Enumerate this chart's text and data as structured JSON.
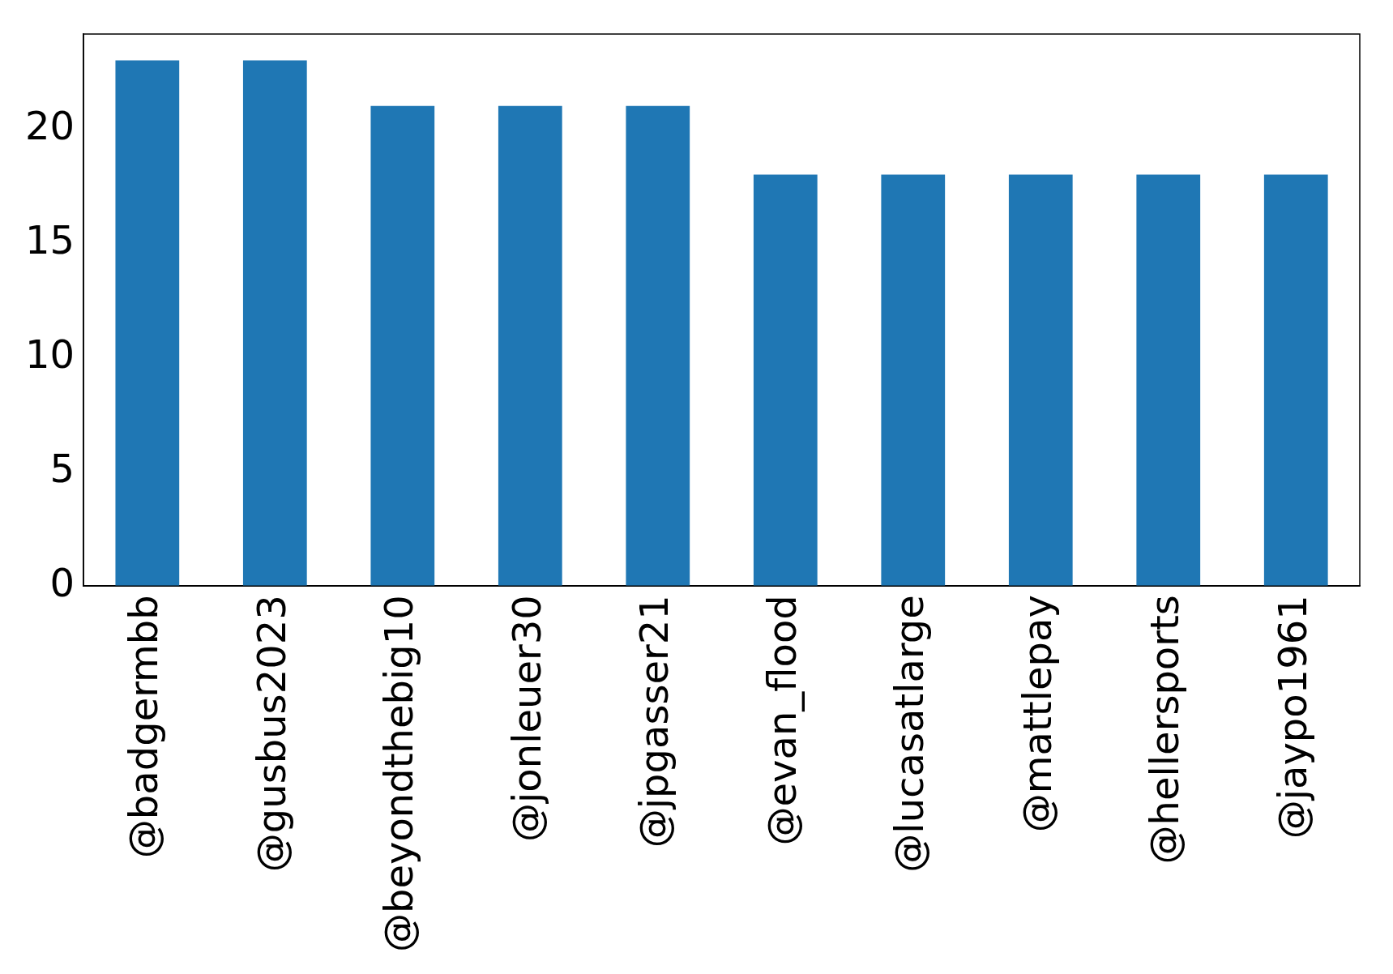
{
  "chart_data": {
    "type": "bar",
    "categories": [
      "@badgermbb",
      "@gusbus2023",
      "@beyondthebig10",
      "@jonleuer30",
      "@jpgasser21",
      "@evan_flood",
      "@lucasatlarge",
      "@mattlepay",
      "@hellersports",
      "@jaypo1961"
    ],
    "values": [
      23,
      23,
      21,
      21,
      21,
      18,
      18,
      18,
      18,
      18
    ],
    "color": "#1f77b4",
    "ylim": [
      0,
      24.15
    ],
    "yticks": [
      0,
      5,
      10,
      15,
      20
    ],
    "grid": false,
    "legend": false
  }
}
